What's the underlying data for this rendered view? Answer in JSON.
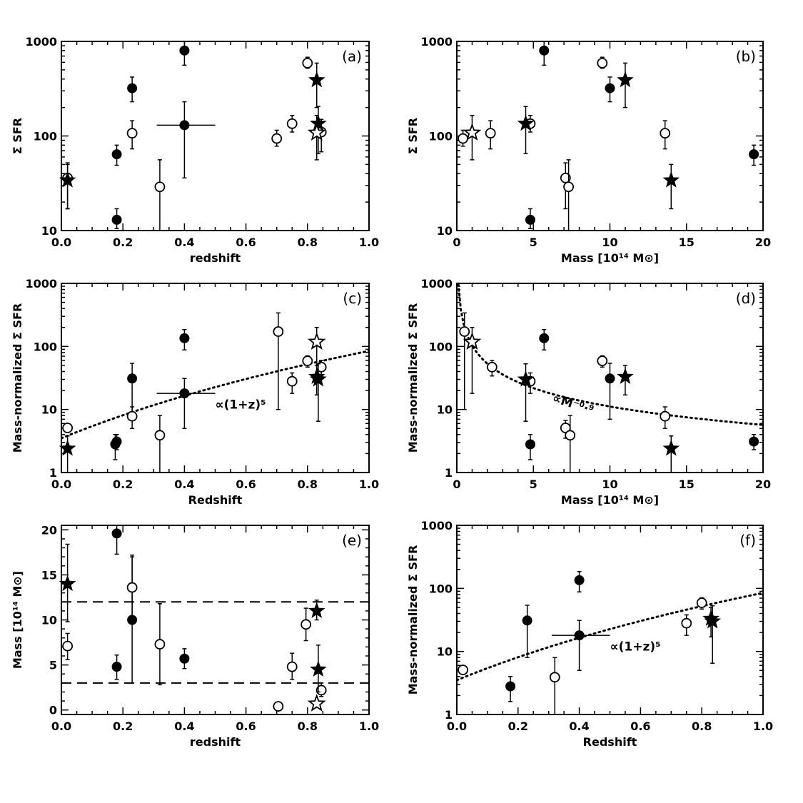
{
  "chart_data": [
    {
      "id": "a",
      "type": "scatter",
      "panel_label": "(a)",
      "xlabel": "redshift",
      "ylabel": "Σ SFR",
      "xlim": [
        0,
        1.0
      ],
      "ylim": [
        10,
        1000
      ],
      "yscale": "log",
      "xticks": [
        0.0,
        0.2,
        0.4,
        0.6,
        0.8,
        1.0
      ],
      "xtick_labels": [
        "0.0",
        "0.2",
        "0.4",
        "0.6",
        "0.8",
        "1.0"
      ],
      "yticks": [
        10,
        100,
        1000
      ],
      "ytick_labels": [
        "10",
        "100",
        "1000"
      ],
      "series": [
        {
          "marker": "filled-circle",
          "points": [
            {
              "x": 0.18,
              "y": 13,
              "ylo": 10.5,
              "yhi": 17
            },
            {
              "x": 0.18,
              "y": 64,
              "ylo": 49,
              "yhi": 80
            },
            {
              "x": 0.23,
              "y": 320,
              "ylo": 230,
              "yhi": 420
            },
            {
              "x": 0.4,
              "y": 800,
              "ylo": 560,
              "yhi": 1000
            },
            {
              "x": 0.4,
              "y": 130,
              "ylo": 36,
              "yhi": 230,
              "xlo": 0.31,
              "xhi": 0.5
            }
          ]
        },
        {
          "marker": "open-circle",
          "points": [
            {
              "x": 0.02,
              "y": 36,
              "ylo": 17,
              "yhi": 52
            },
            {
              "x": 0.23,
              "y": 107,
              "ylo": 73,
              "yhi": 145
            },
            {
              "x": 0.32,
              "y": 29,
              "ylo": 10,
              "yhi": 56
            },
            {
              "x": 0.7,
              "y": 94,
              "ylo": 78,
              "yhi": 115
            },
            {
              "x": 0.75,
              "y": 135,
              "ylo": 110,
              "yhi": 165
            },
            {
              "x": 0.8,
              "y": 590,
              "ylo": 520,
              "yhi": 680
            },
            {
              "x": 0.845,
              "y": 110,
              "ylo": 68,
              "yhi": 150
            }
          ]
        },
        {
          "marker": "filled-star",
          "points": [
            {
              "x": 0.02,
              "y": 34,
              "ylo": 17,
              "yhi": 50
            },
            {
              "x": 0.83,
              "y": 390,
              "ylo": 200,
              "yhi": 590
            },
            {
              "x": 0.835,
              "y": 135,
              "ylo": 65,
              "yhi": 205
            }
          ]
        },
        {
          "marker": "open-star",
          "points": [
            {
              "x": 0.83,
              "y": 108,
              "ylo": 56,
              "yhi": 165
            }
          ]
        }
      ]
    },
    {
      "id": "b",
      "type": "scatter",
      "panel_label": "(b)",
      "xlabel": "Mass [10¹⁴ M⊙]",
      "ylabel": "Σ SFR",
      "xlim": [
        0,
        20
      ],
      "ylim": [
        10,
        1000
      ],
      "yscale": "log",
      "xticks": [
        0,
        5,
        10,
        15,
        20
      ],
      "xtick_labels": [
        "0",
        "5",
        "10",
        "15",
        "20"
      ],
      "yticks": [
        10,
        100,
        1000
      ],
      "ytick_labels": [
        "10",
        "100",
        "1000"
      ],
      "series": [
        {
          "marker": "filled-circle",
          "points": [
            {
              "x": 4.8,
              "y": 13,
              "ylo": 10.5,
              "yhi": 17
            },
            {
              "x": 5.7,
              "y": 800,
              "ylo": 560,
              "yhi": 1000
            },
            {
              "x": 10.0,
              "y": 320,
              "ylo": 230,
              "yhi": 420
            },
            {
              "x": 19.4,
              "y": 64,
              "ylo": 49,
              "yhi": 80
            }
          ]
        },
        {
          "marker": "open-circle",
          "points": [
            {
              "x": 0.4,
              "y": 94,
              "ylo": 78,
              "yhi": 115
            },
            {
              "x": 2.2,
              "y": 107,
              "ylo": 73,
              "yhi": 145
            },
            {
              "x": 4.8,
              "y": 135,
              "ylo": 110,
              "yhi": 165
            },
            {
              "x": 7.1,
              "y": 36,
              "ylo": 17,
              "yhi": 52
            },
            {
              "x": 7.3,
              "y": 29,
              "ylo": 10,
              "yhi": 56
            },
            {
              "x": 9.5,
              "y": 590,
              "ylo": 520,
              "yhi": 680
            },
            {
              "x": 13.6,
              "y": 107,
              "ylo": 73,
              "yhi": 145
            }
          ]
        },
        {
          "marker": "filled-star",
          "points": [
            {
              "x": 4.5,
              "y": 135,
              "ylo": 65,
              "yhi": 205
            },
            {
              "x": 11.0,
              "y": 390,
              "ylo": 200,
              "yhi": 590
            },
            {
              "x": 14.0,
              "y": 34,
              "ylo": 17,
              "yhi": 50
            }
          ]
        },
        {
          "marker": "open-star",
          "points": [
            {
              "x": 1.0,
              "y": 108,
              "ylo": 56,
              "yhi": 165
            }
          ]
        }
      ]
    },
    {
      "id": "c",
      "type": "scatter",
      "panel_label": "(c)",
      "xlabel": "Redshift",
      "ylabel": "Mass-normalized Σ SFR",
      "xlim": [
        0,
        1.0
      ],
      "ylim": [
        1,
        1000
      ],
      "yscale": "log",
      "xticks": [
        0.0,
        0.2,
        0.4,
        0.6,
        0.8,
        1.0
      ],
      "xtick_labels": [
        "0.0",
        "0.2",
        "0.4",
        "0.6",
        "0.8",
        "1.0"
      ],
      "yticks": [
        1,
        10,
        100,
        1000
      ],
      "ytick_labels": [
        "1",
        "10",
        "100",
        "1000"
      ],
      "fit": {
        "kind": "power-1pz",
        "amp": 3.5,
        "exp": 4.6,
        "style": "dotted",
        "label": "∝(1+z)⁵"
      },
      "series": [
        {
          "marker": "filled-circle",
          "points": [
            {
              "x": 0.175,
              "y": 2.8,
              "ylo": 1.6,
              "yhi": 4.0
            },
            {
              "x": 0.18,
              "y": 3.1,
              "ylo": 2.3,
              "yhi": 4.0
            },
            {
              "x": 0.23,
              "y": 31,
              "ylo": 8,
              "yhi": 54
            },
            {
              "x": 0.4,
              "y": 135,
              "ylo": 88,
              "yhi": 185
            },
            {
              "x": 0.4,
              "y": 18,
              "ylo": 5,
              "yhi": 31,
              "xlo": 0.31,
              "xhi": 0.5
            }
          ]
        },
        {
          "marker": "open-circle",
          "points": [
            {
              "x": 0.02,
              "y": 5.1
            },
            {
              "x": 0.23,
              "y": 7.8,
              "ylo": 5,
              "yhi": 11
            },
            {
              "x": 0.32,
              "y": 3.9,
              "ylo": 1,
              "yhi": 8
            },
            {
              "x": 0.705,
              "y": 172,
              "ylo": 10,
              "yhi": 340
            },
            {
              "x": 0.75,
              "y": 28,
              "ylo": 18,
              "yhi": 38
            },
            {
              "x": 0.8,
              "y": 59,
              "ylo": 47,
              "yhi": 71
            },
            {
              "x": 0.845,
              "y": 47,
              "ylo": 34,
              "yhi": 60
            }
          ]
        },
        {
          "marker": "filled-star",
          "points": [
            {
              "x": 0.02,
              "y": 2.4,
              "ylo": 1,
              "yhi": 3.8
            },
            {
              "x": 0.83,
              "y": 33,
              "ylo": 17,
              "yhi": 50
            },
            {
              "x": 0.835,
              "y": 30,
              "ylo": 6.5,
              "yhi": 53
            }
          ]
        },
        {
          "marker": "open-star",
          "points": [
            {
              "x": 0.83,
              "y": 118,
              "ylo": 35,
              "yhi": 200
            }
          ]
        }
      ]
    },
    {
      "id": "d",
      "type": "scatter",
      "panel_label": "(d)",
      "xlabel": "Mass [10¹⁴ M⊙]",
      "ylabel": "Mass-normalized Σ SFR",
      "xlim": [
        0,
        20
      ],
      "ylim": [
        1,
        1000
      ],
      "yscale": "log",
      "xticks": [
        0,
        5,
        10,
        15,
        20
      ],
      "xtick_labels": [
        "0",
        "5",
        "10",
        "15",
        "20"
      ],
      "yticks": [
        1,
        10,
        100,
        1000
      ],
      "ytick_labels": [
        "1",
        "10",
        "100",
        "1000"
      ],
      "fit": {
        "kind": "power-m",
        "amp": 104,
        "exp": -0.97,
        "style": "dotted",
        "label": "∝M⁻⁰·⁹"
      },
      "series": [
        {
          "marker": "filled-circle",
          "points": [
            {
              "x": 4.8,
              "y": 2.8,
              "ylo": 1.6,
              "yhi": 4.0
            },
            {
              "x": 5.7,
              "y": 135,
              "ylo": 88,
              "yhi": 185
            },
            {
              "x": 10.0,
              "y": 31,
              "ylo": 7,
              "yhi": 54
            },
            {
              "x": 19.4,
              "y": 3.1,
              "ylo": 2.3,
              "yhi": 4.0
            }
          ]
        },
        {
          "marker": "open-circle",
          "points": [
            {
              "x": 0.5,
              "y": 172,
              "ylo": 10,
              "yhi": 340
            },
            {
              "x": 2.3,
              "y": 47,
              "ylo": 34,
              "yhi": 60
            },
            {
              "x": 4.8,
              "y": 28,
              "ylo": 18,
              "yhi": 38
            },
            {
              "x": 7.1,
              "y": 5.1,
              "ylo": 3.5,
              "yhi": 6.7
            },
            {
              "x": 7.4,
              "y": 3.9,
              "ylo": 1,
              "yhi": 8
            },
            {
              "x": 9.5,
              "y": 59,
              "ylo": 47,
              "yhi": 71
            },
            {
              "x": 13.6,
              "y": 7.8,
              "ylo": 5,
              "yhi": 11
            }
          ]
        },
        {
          "marker": "filled-star",
          "points": [
            {
              "x": 4.5,
              "y": 30,
              "ylo": 6.5,
              "yhi": 53
            },
            {
              "x": 11.0,
              "y": 33,
              "ylo": 17,
              "yhi": 50
            },
            {
              "x": 14.0,
              "y": 2.4,
              "ylo": 1,
              "yhi": 3.8
            }
          ]
        },
        {
          "marker": "open-star",
          "points": [
            {
              "x": 1.0,
              "y": 118,
              "ylo": 18,
              "yhi": 200
            }
          ]
        }
      ]
    },
    {
      "id": "e",
      "type": "scatter",
      "panel_label": "(e)",
      "xlabel": "redshift",
      "ylabel": "Mass [10¹⁴ M⊙]",
      "xlim": [
        0,
        1.0
      ],
      "ylim": [
        -0.5,
        20.5
      ],
      "yscale": "linear",
      "xticks": [
        0.0,
        0.2,
        0.4,
        0.6,
        0.8,
        1.0
      ],
      "xtick_labels": [
        "0.0",
        "0.2",
        "0.4",
        "0.6",
        "0.8",
        "1.0"
      ],
      "yticks": [
        0,
        5,
        10,
        15,
        20
      ],
      "ytick_labels": [
        "0",
        "5",
        "10",
        "15",
        "20"
      ],
      "hlines": [
        12,
        3
      ],
      "series": [
        {
          "marker": "filled-circle",
          "points": [
            {
              "x": 0.18,
              "y": 4.8,
              "ylo": 3.4,
              "yhi": 6.1
            },
            {
              "x": 0.18,
              "y": 19.6,
              "ylo": 17.3,
              "yhi": 21
            },
            {
              "x": 0.23,
              "y": 10.0,
              "ylo": 3,
              "yhi": 17
            },
            {
              "x": 0.4,
              "y": 5.7,
              "ylo": 4.6,
              "yhi": 6.8
            }
          ]
        },
        {
          "marker": "open-circle",
          "points": [
            {
              "x": 0.02,
              "y": 7.1,
              "ylo": 5.6,
              "yhi": 8.5
            },
            {
              "x": 0.23,
              "y": 13.6,
              "ylo": 9.9,
              "yhi": 17.2
            },
            {
              "x": 0.32,
              "y": 7.3,
              "ylo": 2.8,
              "yhi": 11.8
            },
            {
              "x": 0.705,
              "y": 0.4
            },
            {
              "x": 0.75,
              "y": 4.8,
              "ylo": 3.4,
              "yhi": 6.3
            },
            {
              "x": 0.795,
              "y": 9.5,
              "ylo": 7.7,
              "yhi": 11.3
            },
            {
              "x": 0.845,
              "y": 2.2,
              "ylo": 1.5,
              "yhi": 3.0
            }
          ]
        },
        {
          "marker": "filled-star",
          "points": [
            {
              "x": 0.02,
              "y": 14.0,
              "ylo": 9.8,
              "yhi": 18.4
            },
            {
              "x": 0.83,
              "y": 11.0,
              "ylo": 10,
              "yhi": 12.2
            },
            {
              "x": 0.835,
              "y": 4.5,
              "ylo": 2.0,
              "yhi": 7.2
            }
          ]
        },
        {
          "marker": "open-star",
          "points": [
            {
              "x": 0.83,
              "y": 0.7
            }
          ]
        }
      ]
    },
    {
      "id": "f",
      "type": "scatter",
      "panel_label": "(f)",
      "xlabel": "Redshift",
      "ylabel": "Mass-normalized Σ SFR",
      "xlim": [
        0,
        1.0
      ],
      "ylim": [
        1,
        1000
      ],
      "yscale": "log",
      "xticks": [
        0.0,
        0.2,
        0.4,
        0.6,
        0.8,
        1.0
      ],
      "xtick_labels": [
        "0.0",
        "0.2",
        "0.4",
        "0.6",
        "0.8",
        "1.0"
      ],
      "yticks": [
        1,
        10,
        100,
        1000
      ],
      "ytick_labels": [
        "1",
        "10",
        "100",
        "1000"
      ],
      "fit": {
        "kind": "power-1pz",
        "amp": 3.5,
        "exp": 4.6,
        "style": "dotted",
        "label": "∝(1+z)⁵"
      },
      "series": [
        {
          "marker": "filled-circle",
          "points": [
            {
              "x": 0.175,
              "y": 2.8,
              "ylo": 1.6,
              "yhi": 4.0
            },
            {
              "x": 0.23,
              "y": 31,
              "ylo": 8,
              "yhi": 54
            },
            {
              "x": 0.4,
              "y": 135,
              "ylo": 88,
              "yhi": 185
            },
            {
              "x": 0.4,
              "y": 18,
              "ylo": 5,
              "yhi": 31,
              "xlo": 0.31,
              "xhi": 0.5
            }
          ]
        },
        {
          "marker": "open-circle",
          "points": [
            {
              "x": 0.02,
              "y": 5.1
            },
            {
              "x": 0.32,
              "y": 3.9,
              "ylo": 1,
              "yhi": 8
            },
            {
              "x": 0.75,
              "y": 28,
              "ylo": 18,
              "yhi": 38
            },
            {
              "x": 0.8,
              "y": 59,
              "ylo": 47,
              "yhi": 71
            }
          ]
        },
        {
          "marker": "filled-star",
          "points": [
            {
              "x": 0.83,
              "y": 33,
              "ylo": 17,
              "yhi": 50
            },
            {
              "x": 0.835,
              "y": 30,
              "ylo": 6.5,
              "yhi": 53
            }
          ]
        }
      ]
    }
  ]
}
